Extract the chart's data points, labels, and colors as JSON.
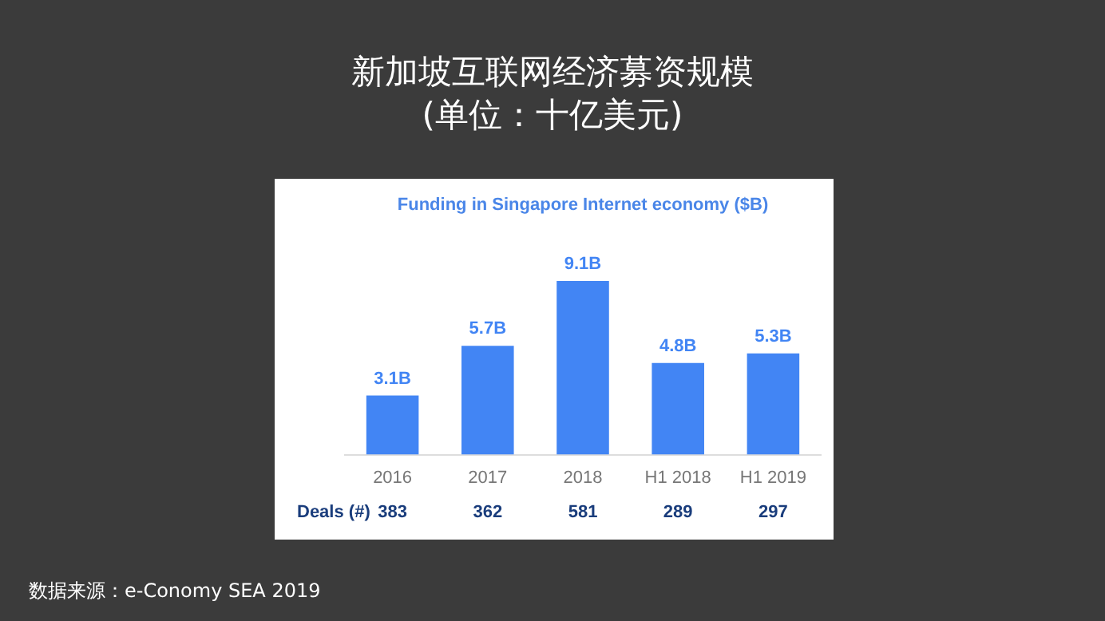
{
  "chart_data": {
    "type": "bar",
    "title": "新加坡互联网经济募资规模\n(单位：十亿美元)",
    "subtitle": "Funding in Singapore Internet economy ($B)",
    "categories": [
      "2016",
      "2017",
      "2018",
      "H1 2018",
      "H1 2019"
    ],
    "series": [
      {
        "color": "#4285f4",
        "values": [
          3.1,
          5.7,
          9.1,
          4.8,
          5.3
        ],
        "value_labels": [
          "3.1B",
          "5.7B",
          "9.1B",
          "4.8B",
          "5.3B"
        ]
      }
    ],
    "annotations": [
      "Deals (#)",
      "383",
      "362",
      "581",
      "289",
      "297",
      "数据来源：e-Conomy SEA 2019"
    ],
    "tick_labels": "x",
    "grid": false,
    "legend": false
  }
}
